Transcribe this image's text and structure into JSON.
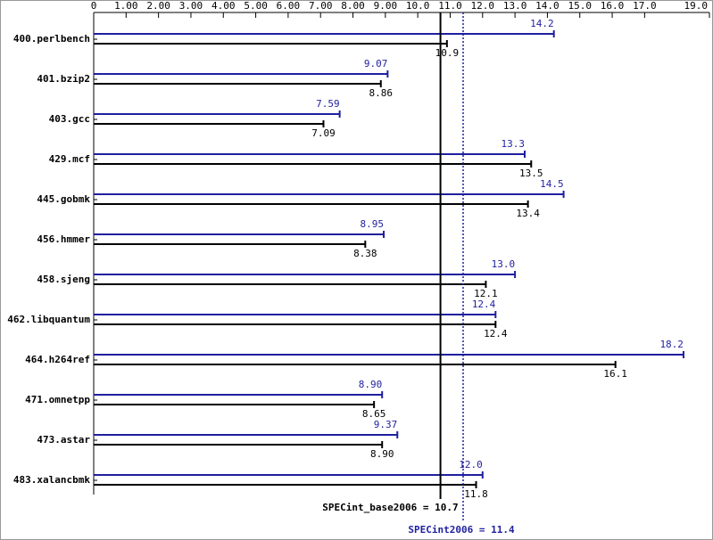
{
  "chart_data": {
    "type": "bar",
    "categories": [
      "400.perlbench",
      "401.bzip2",
      "403.gcc",
      "429.mcf",
      "445.gobmk",
      "456.hmmer",
      "458.sjeng",
      "462.libquantum",
      "464.h264ref",
      "471.omnetpp",
      "473.astar",
      "483.xalancbmk"
    ],
    "series": [
      {
        "color": "#1f1f9f",
        "values": [
          14.2,
          9.07,
          7.59,
          13.3,
          14.5,
          8.95,
          13.0,
          12.4,
          18.2,
          8.9,
          9.37,
          12.0
        ],
        "value_labels": [
          "14.2",
          "9.07",
          "7.59",
          "13.3",
          "14.5",
          "8.95",
          "13.0",
          "12.4",
          "18.2",
          "8.90",
          "9.37",
          "12.0"
        ]
      },
      {
        "color": "#000000",
        "values": [
          10.9,
          8.86,
          7.09,
          13.5,
          13.4,
          8.38,
          12.1,
          12.4,
          16.1,
          8.65,
          8.9,
          11.8
        ],
        "value_labels": [
          "10.9",
          "8.86",
          "7.09",
          "13.5",
          "13.4",
          "8.38",
          "12.1",
          "12.4",
          "16.1",
          "8.65",
          "8.90",
          "11.8"
        ]
      }
    ],
    "xlim": [
      0,
      19
    ],
    "xticks": [
      0,
      {
        "value": 1,
        "label": "1.00"
      },
      {
        "value": 2,
        "label": "2.00"
      },
      {
        "value": 3,
        "label": "3.00"
      },
      {
        "value": 4,
        "label": "4.00"
      },
      {
        "value": 5,
        "label": "5.00"
      },
      {
        "value": 6,
        "label": "6.00"
      },
      {
        "value": 7,
        "label": "7.00"
      },
      {
        "value": 8,
        "label": "8.00"
      },
      {
        "value": 9,
        "label": "9.00"
      },
      {
        "value": 10,
        "label": "10.0"
      },
      {
        "value": 11,
        "label": "11.0"
      },
      {
        "value": 12,
        "label": "12.0"
      },
      {
        "value": 13,
        "label": "13.0"
      },
      {
        "value": 14,
        "label": "14.0"
      },
      {
        "value": 15,
        "label": "15.0"
      },
      {
        "value": 16,
        "label": "16.0"
      },
      {
        "value": 17,
        "label": "17.0"
      },
      {
        "value": 19,
        "label": "19.0"
      }
    ],
    "reference_lines": [
      {
        "text": "SPECint_base2006 = 10.7",
        "value": 10.7,
        "color": "#000000",
        "style": "solid"
      },
      {
        "text": "SPECint2006 = 11.4",
        "value": 11.4,
        "color": "#1f1f9f",
        "style": "dotted"
      }
    ]
  }
}
